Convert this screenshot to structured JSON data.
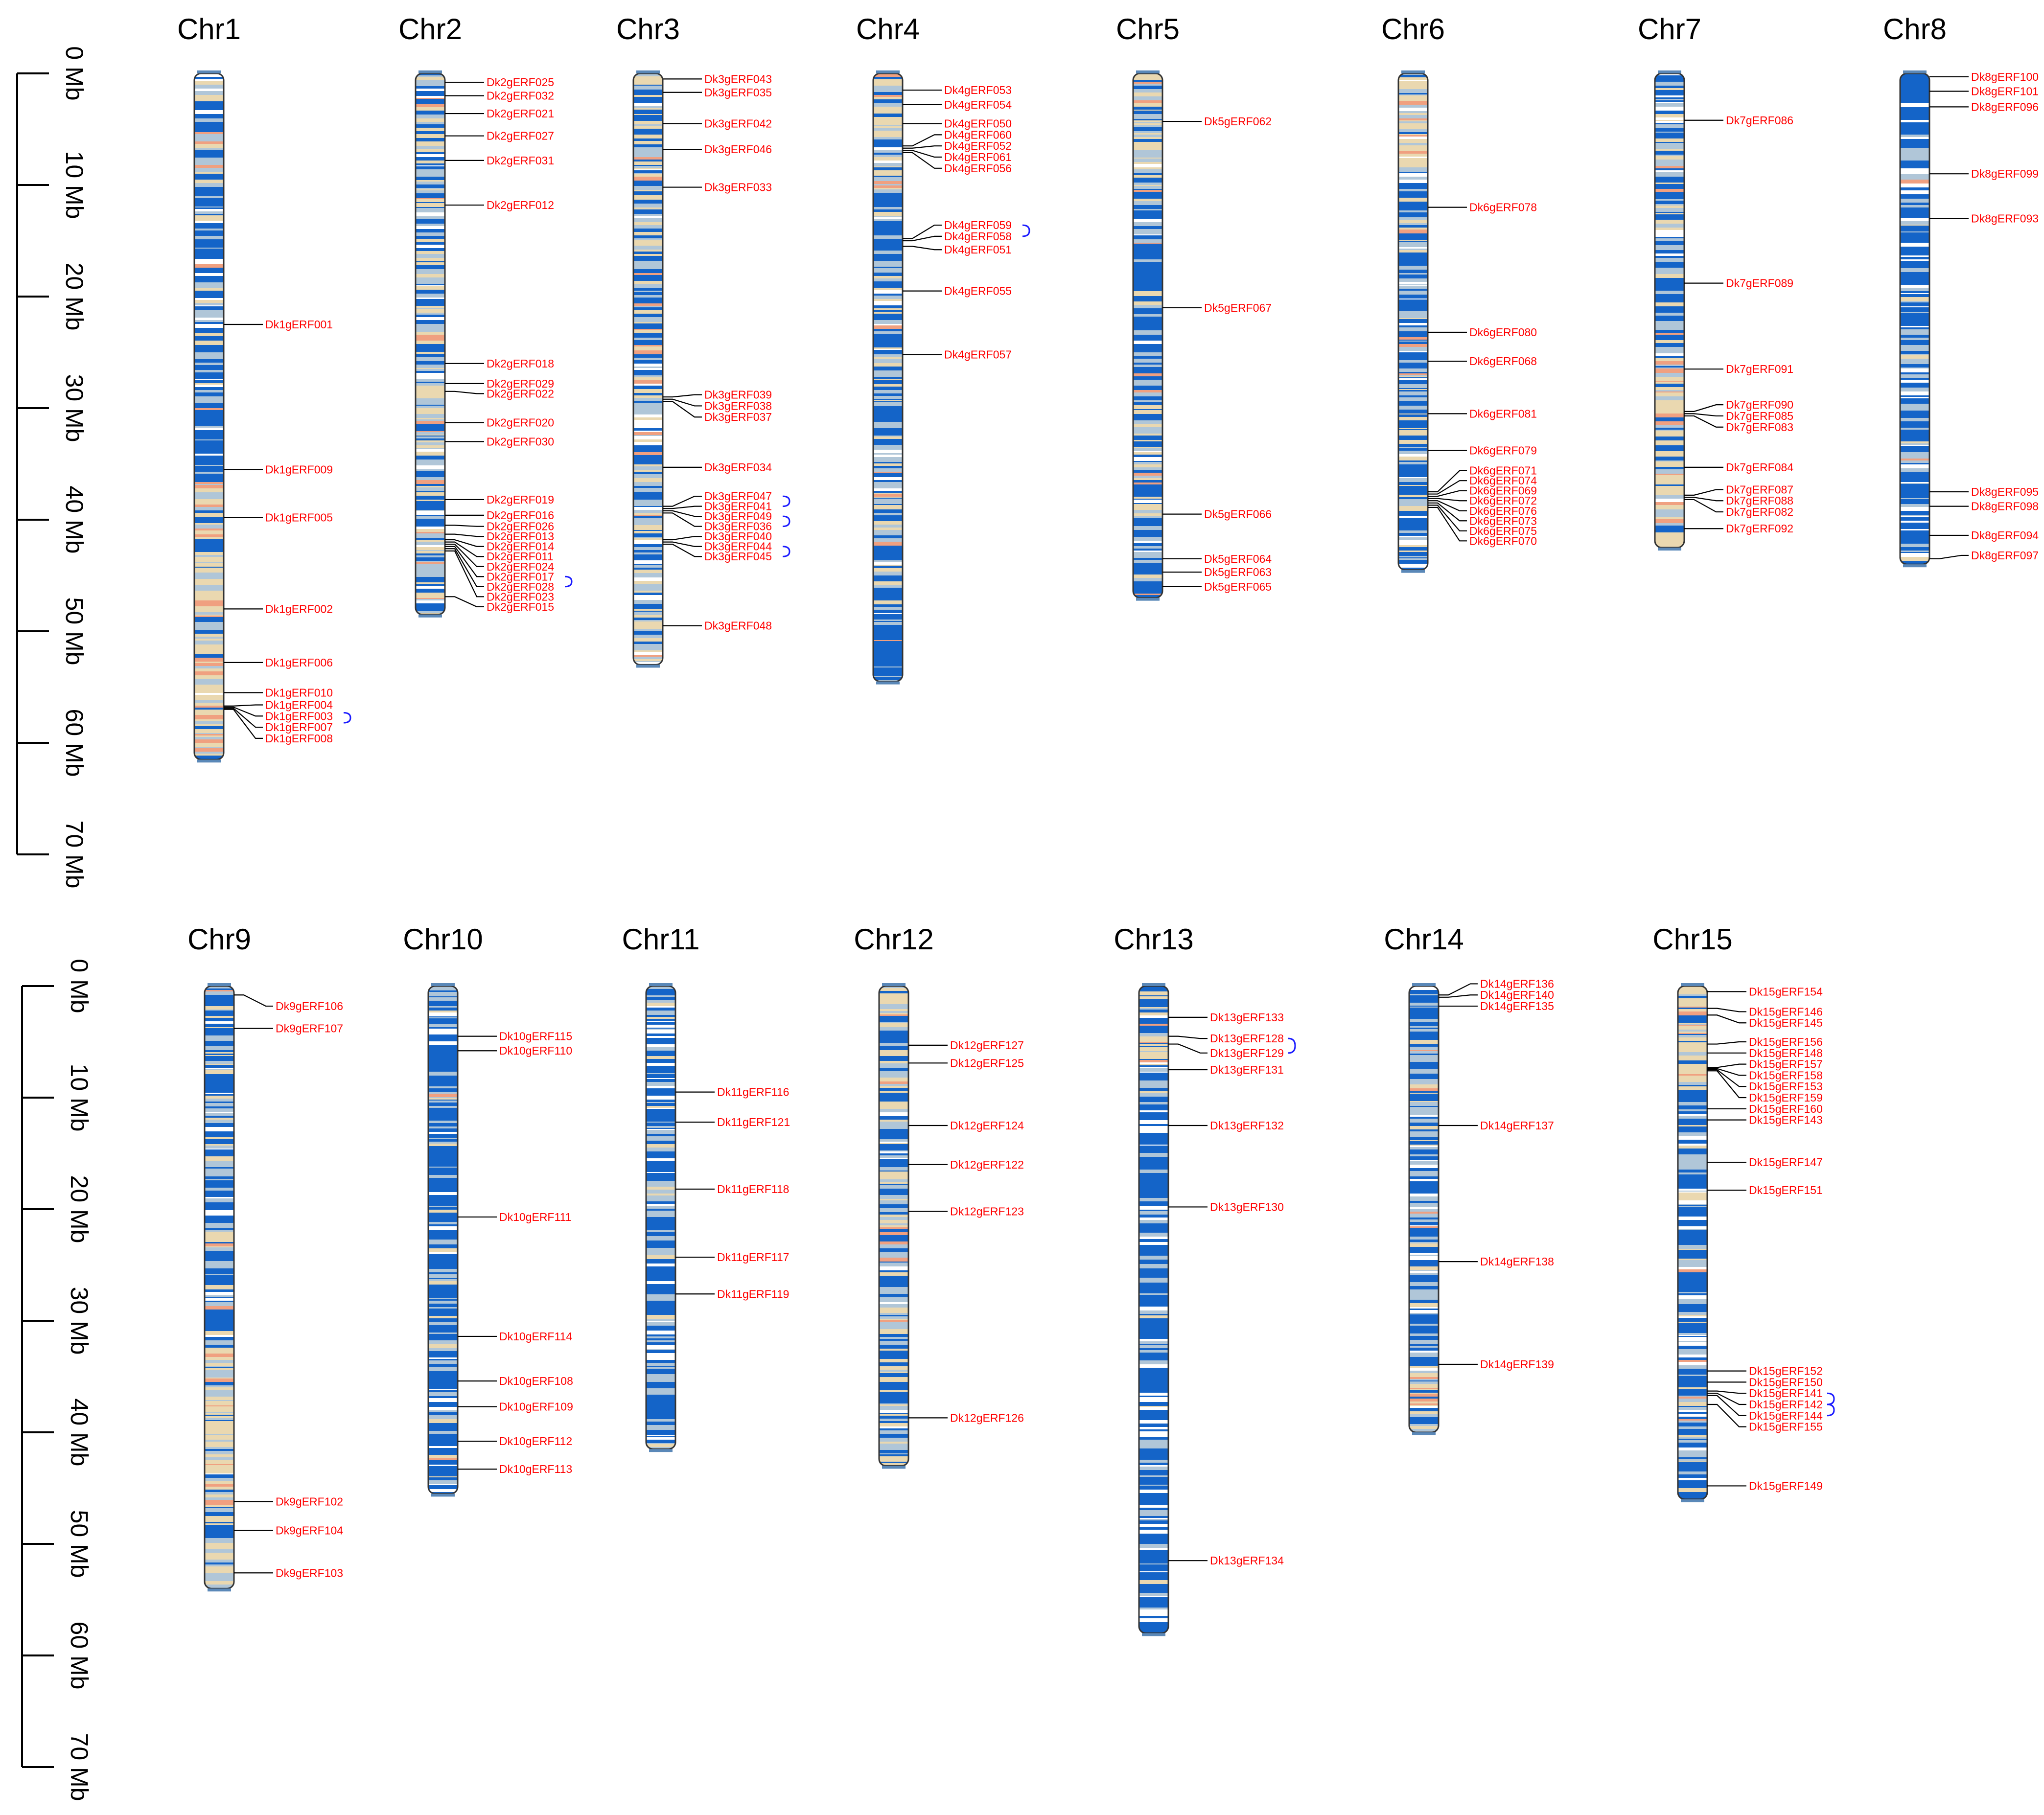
{
  "colors": {
    "gene_label": "#ff0000",
    "leader_line": "#000000",
    "tandem_bracket": "#1a1aff",
    "density_high": "#1464c8",
    "density_mid": "#b0c6d8",
    "density_low": "#ead8b0",
    "density_peak": "#f0a080",
    "chromosome_outline": "#333333"
  },
  "scale_unit": "Mb",
  "axes": [
    {
      "panel": "top",
      "ticks": [
        "0 Mb",
        "10 Mb",
        "20 Mb",
        "30 Mb",
        "40 Mb",
        "50 Mb",
        "60 Mb",
        "70 Mb"
      ]
    },
    {
      "panel": "bottom",
      "ticks": [
        "0 Mb",
        "10 Mb",
        "20 Mb",
        "30 Mb",
        "40 Mb",
        "50 Mb",
        "60 Mb",
        "70 Mb"
      ]
    }
  ],
  "chromosomes": [
    {
      "name": "Chr1",
      "panel": "top",
      "length_mb": 61.5,
      "density": "mixed_tail",
      "genes": [
        {
          "id": "Dk1gERF001",
          "pos": 22.5,
          "label_pos": 22.5
        },
        {
          "id": "Dk1gERF009",
          "pos": 35.5,
          "label_pos": 35.5
        },
        {
          "id": "Dk1gERF005",
          "pos": 39.8,
          "label_pos": 39.8
        },
        {
          "id": "Dk1gERF002",
          "pos": 48.0,
          "label_pos": 48.0
        },
        {
          "id": "Dk1gERF006",
          "pos": 52.8,
          "label_pos": 52.8
        },
        {
          "id": "Dk1gERF010",
          "pos": 55.5,
          "label_pos": 55.5
        },
        {
          "id": "Dk1gERF004",
          "pos": 56.7,
          "label_pos": 56.6
        },
        {
          "id": "Dk1gERF003",
          "pos": 56.8,
          "label_pos": 57.6
        },
        {
          "id": "Dk1gERF007",
          "pos": 56.9,
          "label_pos": 58.6
        },
        {
          "id": "Dk1gERF008",
          "pos": 57.0,
          "label_pos": 59.6
        }
      ],
      "tandem": [
        [
          57.3,
          58.2
        ]
      ]
    },
    {
      "name": "Chr2",
      "panel": "top",
      "length_mb": 48.5,
      "density": "mixed",
      "genes": [
        {
          "id": "Dk2gERF025",
          "pos": 0.8,
          "label_pos": 0.8
        },
        {
          "id": "Dk2gERF032",
          "pos": 2.0,
          "label_pos": 2.0
        },
        {
          "id": "Dk2gERF021",
          "pos": 3.6,
          "label_pos": 3.6
        },
        {
          "id": "Dk2gERF027",
          "pos": 5.6,
          "label_pos": 5.6
        },
        {
          "id": "Dk2gERF031",
          "pos": 7.8,
          "label_pos": 7.8
        },
        {
          "id": "Dk2gERF012",
          "pos": 11.8,
          "label_pos": 11.8
        },
        {
          "id": "Dk2gERF018",
          "pos": 26.0,
          "label_pos": 26.0
        },
        {
          "id": "Dk2gERF029",
          "pos": 27.8,
          "label_pos": 27.8
        },
        {
          "id": "Dk2gERF022",
          "pos": 28.5,
          "label_pos": 28.7
        },
        {
          "id": "Dk2gERF020",
          "pos": 31.3,
          "label_pos": 31.3
        },
        {
          "id": "Dk2gERF030",
          "pos": 33.0,
          "label_pos": 33.0
        },
        {
          "id": "Dk2gERF019",
          "pos": 38.2,
          "label_pos": 38.2
        },
        {
          "id": "Dk2gERF016",
          "pos": 39.6,
          "label_pos": 39.6
        },
        {
          "id": "Dk2gERF026",
          "pos": 40.5,
          "label_pos": 40.6
        },
        {
          "id": "Dk2gERF013",
          "pos": 41.3,
          "label_pos": 41.5
        },
        {
          "id": "Dk2gERF014",
          "pos": 41.8,
          "label_pos": 42.4
        },
        {
          "id": "Dk2gERF011",
          "pos": 42.0,
          "label_pos": 43.3
        },
        {
          "id": "Dk2gERF024",
          "pos": 42.2,
          "label_pos": 44.2
        },
        {
          "id": "Dk2gERF017",
          "pos": 42.4,
          "label_pos": 45.1
        },
        {
          "id": "Dk2gERF028",
          "pos": 42.6,
          "label_pos": 46.0
        },
        {
          "id": "Dk2gERF023",
          "pos": 42.8,
          "label_pos": 46.9
        },
        {
          "id": "Dk2gERF015",
          "pos": 46.9,
          "label_pos": 47.8
        }
      ],
      "tandem": [
        [
          45.1,
          46.0
        ]
      ]
    },
    {
      "name": "Chr3",
      "panel": "top",
      "length_mb": 53.0,
      "density": "mixed",
      "genes": [
        {
          "id": "Dk3gERF043",
          "pos": 0.5,
          "label_pos": 0.5
        },
        {
          "id": "Dk3gERF035",
          "pos": 1.7,
          "label_pos": 1.7
        },
        {
          "id": "Dk3gERF042",
          "pos": 4.5,
          "label_pos": 4.5
        },
        {
          "id": "Dk3gERF046",
          "pos": 6.8,
          "label_pos": 6.8
        },
        {
          "id": "Dk3gERF033",
          "pos": 10.2,
          "label_pos": 10.2
        },
        {
          "id": "Dk3gERF039",
          "pos": 29.0,
          "label_pos": 28.8
        },
        {
          "id": "Dk3gERF038",
          "pos": 29.2,
          "label_pos": 29.8
        },
        {
          "id": "Dk3gERF037",
          "pos": 29.4,
          "label_pos": 30.8
        },
        {
          "id": "Dk3gERF034",
          "pos": 35.3,
          "label_pos": 35.3
        },
        {
          "id": "Dk3gERF047",
          "pos": 38.8,
          "label_pos": 37.9
        },
        {
          "id": "Dk3gERF041",
          "pos": 39.0,
          "label_pos": 38.8
        },
        {
          "id": "Dk3gERF049",
          "pos": 39.2,
          "label_pos": 39.7
        },
        {
          "id": "Dk3gERF036",
          "pos": 39.4,
          "label_pos": 40.6
        },
        {
          "id": "Dk3gERF040",
          "pos": 41.8,
          "label_pos": 41.5
        },
        {
          "id": "Dk3gERF044",
          "pos": 42.0,
          "label_pos": 42.4
        },
        {
          "id": "Dk3gERF045",
          "pos": 42.2,
          "label_pos": 43.3
        },
        {
          "id": "Dk3gERF048",
          "pos": 49.5,
          "label_pos": 49.5
        }
      ],
      "tandem": [
        [
          37.9,
          38.8
        ],
        [
          39.7,
          40.6
        ],
        [
          42.4,
          43.3
        ]
      ]
    },
    {
      "name": "Chr4",
      "panel": "top",
      "length_mb": 54.5,
      "density": "mixed_head",
      "genes": [
        {
          "id": "Dk4gERF053",
          "pos": 1.5,
          "label_pos": 1.5
        },
        {
          "id": "Dk4gERF054",
          "pos": 2.8,
          "label_pos": 2.8
        },
        {
          "id": "Dk4gERF050",
          "pos": 4.5,
          "label_pos": 4.5
        },
        {
          "id": "Dk4gERF060",
          "pos": 6.5,
          "label_pos": 5.5
        },
        {
          "id": "Dk4gERF052",
          "pos": 6.7,
          "label_pos": 6.5
        },
        {
          "id": "Dk4gERF061",
          "pos": 6.9,
          "label_pos": 7.5
        },
        {
          "id": "Dk4gERF056",
          "pos": 7.1,
          "label_pos": 8.5
        },
        {
          "id": "Dk4gERF059",
          "pos": 14.8,
          "label_pos": 13.6
        },
        {
          "id": "Dk4gERF058",
          "pos": 15.0,
          "label_pos": 14.6
        },
        {
          "id": "Dk4gERF051",
          "pos": 15.5,
          "label_pos": 15.8
        },
        {
          "id": "Dk4gERF055",
          "pos": 19.5,
          "label_pos": 19.5
        },
        {
          "id": "Dk4gERF057",
          "pos": 25.2,
          "label_pos": 25.2
        }
      ],
      "tandem": [
        [
          13.6,
          14.6
        ]
      ]
    },
    {
      "name": "Chr5",
      "panel": "top",
      "length_mb": 47.0,
      "density": "mixed_head",
      "genes": [
        {
          "id": "Dk5gERF062",
          "pos": 4.3,
          "label_pos": 4.3
        },
        {
          "id": "Dk5gERF067",
          "pos": 21.0,
          "label_pos": 21.0
        },
        {
          "id": "Dk5gERF066",
          "pos": 39.5,
          "label_pos": 39.5
        },
        {
          "id": "Dk5gERF064",
          "pos": 43.5,
          "label_pos": 43.5
        },
        {
          "id": "Dk5gERF063",
          "pos": 44.7,
          "label_pos": 44.7
        },
        {
          "id": "Dk5gERF065",
          "pos": 46.0,
          "label_pos": 46.0
        }
      ],
      "tandem": []
    },
    {
      "name": "Chr6",
      "panel": "top",
      "length_mb": 44.5,
      "density": "mixed_head",
      "genes": [
        {
          "id": "Dk6gERF078",
          "pos": 12.0,
          "label_pos": 12.0
        },
        {
          "id": "Dk6gERF080",
          "pos": 23.2,
          "label_pos": 23.2
        },
        {
          "id": "Dk6gERF068",
          "pos": 25.8,
          "label_pos": 25.8
        },
        {
          "id": "Dk6gERF081",
          "pos": 30.5,
          "label_pos": 30.5
        },
        {
          "id": "Dk6gERF079",
          "pos": 33.8,
          "label_pos": 33.8
        },
        {
          "id": "Dk6gERF071",
          "pos": 37.5,
          "label_pos": 35.6
        },
        {
          "id": "Dk6gERF074",
          "pos": 37.7,
          "label_pos": 36.5
        },
        {
          "id": "Dk6gERF069",
          "pos": 37.9,
          "label_pos": 37.4
        },
        {
          "id": "Dk6gERF072",
          "pos": 38.1,
          "label_pos": 38.3
        },
        {
          "id": "Dk6gERF076",
          "pos": 38.3,
          "label_pos": 39.2
        },
        {
          "id": "Dk6gERF073",
          "pos": 38.5,
          "label_pos": 40.1
        },
        {
          "id": "Dk6gERF075",
          "pos": 38.7,
          "label_pos": 41.0
        },
        {
          "id": "Dk6gERF070",
          "pos": 38.9,
          "label_pos": 41.9
        }
      ],
      "tandem": []
    },
    {
      "name": "Chr7",
      "panel": "top",
      "length_mb": 42.5,
      "density": "mixed_tail",
      "genes": [
        {
          "id": "Dk7gERF086",
          "pos": 4.2,
          "label_pos": 4.2
        },
        {
          "id": "Dk7gERF089",
          "pos": 18.8,
          "label_pos": 18.8
        },
        {
          "id": "Dk7gERF091",
          "pos": 26.5,
          "label_pos": 26.5
        },
        {
          "id": "Dk7gERF090",
          "pos": 30.3,
          "label_pos": 29.7
        },
        {
          "id": "Dk7gERF085",
          "pos": 30.5,
          "label_pos": 30.7
        },
        {
          "id": "Dk7gERF083",
          "pos": 30.7,
          "label_pos": 31.7
        },
        {
          "id": "Dk7gERF084",
          "pos": 35.3,
          "label_pos": 35.3
        },
        {
          "id": "Dk7gERF087",
          "pos": 37.8,
          "label_pos": 37.3
        },
        {
          "id": "Dk7gERF088",
          "pos": 38.0,
          "label_pos": 38.3
        },
        {
          "id": "Dk7gERF082",
          "pos": 38.2,
          "label_pos": 39.3
        },
        {
          "id": "Dk7gERF092",
          "pos": 40.8,
          "label_pos": 40.8
        }
      ],
      "tandem": []
    },
    {
      "name": "Chr8",
      "panel": "top",
      "length_mb": 44.0,
      "density": "blue",
      "genes": [
        {
          "id": "Dk8gERF100",
          "pos": 0.3,
          "label_pos": 0.3
        },
        {
          "id": "Dk8gERF101",
          "pos": 1.6,
          "label_pos": 1.6
        },
        {
          "id": "Dk8gERF096",
          "pos": 3.0,
          "label_pos": 3.0
        },
        {
          "id": "Dk8gERF099",
          "pos": 9.0,
          "label_pos": 9.0
        },
        {
          "id": "Dk8gERF093",
          "pos": 13.0,
          "label_pos": 13.0
        },
        {
          "id": "Dk8gERF095",
          "pos": 37.5,
          "label_pos": 37.5
        },
        {
          "id": "Dk8gERF098",
          "pos": 38.8,
          "label_pos": 38.8
        },
        {
          "id": "Dk8gERF094",
          "pos": 41.4,
          "label_pos": 41.4
        },
        {
          "id": "Dk8gERF097",
          "pos": 43.5,
          "label_pos": 43.2
        }
      ],
      "tandem": []
    },
    {
      "name": "Chr9",
      "panel": "bottom",
      "length_mb": 54.0,
      "density": "mixed_tail",
      "genes": [
        {
          "id": "Dk9gERF106",
          "pos": 0.8,
          "label_pos": 1.8
        },
        {
          "id": "Dk9gERF107",
          "pos": 3.8,
          "label_pos": 3.8
        },
        {
          "id": "Dk9gERF102",
          "pos": 46.2,
          "label_pos": 46.2
        },
        {
          "id": "Dk9gERF104",
          "pos": 48.8,
          "label_pos": 48.8
        },
        {
          "id": "Dk9gERF103",
          "pos": 52.6,
          "label_pos": 52.6
        }
      ],
      "tandem": []
    },
    {
      "name": "Chr10",
      "panel": "bottom",
      "length_mb": 45.5,
      "density": "blue",
      "genes": [
        {
          "id": "Dk10gERF115",
          "pos": 4.5,
          "label_pos": 4.5
        },
        {
          "id": "Dk10gERF110",
          "pos": 5.8,
          "label_pos": 5.8
        },
        {
          "id": "Dk10gERF111",
          "pos": 20.7,
          "label_pos": 20.7
        },
        {
          "id": "Dk10gERF114",
          "pos": 31.4,
          "label_pos": 31.4
        },
        {
          "id": "Dk10gERF108",
          "pos": 35.4,
          "label_pos": 35.4
        },
        {
          "id": "Dk10gERF109",
          "pos": 37.7,
          "label_pos": 37.7
        },
        {
          "id": "Dk10gERF112",
          "pos": 40.8,
          "label_pos": 40.8
        },
        {
          "id": "Dk10gERF113",
          "pos": 43.3,
          "label_pos": 43.3
        }
      ],
      "tandem": []
    },
    {
      "name": "Chr11",
      "panel": "bottom",
      "length_mb": 41.5,
      "density": "blue",
      "genes": [
        {
          "id": "Dk11gERF116",
          "pos": 9.5,
          "label_pos": 9.5
        },
        {
          "id": "Dk11gERF121",
          "pos": 12.2,
          "label_pos": 12.2
        },
        {
          "id": "Dk11gERF118",
          "pos": 18.2,
          "label_pos": 18.2
        },
        {
          "id": "Dk11gERF117",
          "pos": 24.3,
          "label_pos": 24.3
        },
        {
          "id": "Dk11gERF119",
          "pos": 27.6,
          "label_pos": 27.6
        }
      ],
      "tandem": []
    },
    {
      "name": "Chr12",
      "panel": "bottom",
      "length_mb": 43.0,
      "density": "mixed",
      "genes": [
        {
          "id": "Dk12gERF127",
          "pos": 5.3,
          "label_pos": 5.3
        },
        {
          "id": "Dk12gERF125",
          "pos": 6.9,
          "label_pos": 6.9
        },
        {
          "id": "Dk12gERF124",
          "pos": 12.5,
          "label_pos": 12.5
        },
        {
          "id": "Dk12gERF122",
          "pos": 16.0,
          "label_pos": 16.0
        },
        {
          "id": "Dk12gERF123",
          "pos": 20.2,
          "label_pos": 20.2
        },
        {
          "id": "Dk12gERF126",
          "pos": 38.7,
          "label_pos": 38.7
        }
      ],
      "tandem": []
    },
    {
      "name": "Chr13",
      "panel": "bottom",
      "length_mb": 58.0,
      "density": "blue_head",
      "genes": [
        {
          "id": "Dk13gERF133",
          "pos": 2.8,
          "label_pos": 2.8
        },
        {
          "id": "Dk13gERF128",
          "pos": 4.5,
          "label_pos": 4.7
        },
        {
          "id": "Dk13gERF129",
          "pos": 5.2,
          "label_pos": 6.0
        },
        {
          "id": "Dk13gERF131",
          "pos": 7.5,
          "label_pos": 7.5
        },
        {
          "id": "Dk13gERF132",
          "pos": 12.5,
          "label_pos": 12.5
        },
        {
          "id": "Dk13gERF130",
          "pos": 19.8,
          "label_pos": 19.8
        },
        {
          "id": "Dk13gERF134",
          "pos": 51.5,
          "label_pos": 51.5
        }
      ],
      "tandem": [
        [
          4.7,
          6.0
        ]
      ]
    },
    {
      "name": "Chr14",
      "panel": "bottom",
      "length_mb": 40.0,
      "density": "blue_tail",
      "genes": [
        {
          "id": "Dk14gERF136",
          "pos": 0.8,
          "label_pos": -0.2
        },
        {
          "id": "Dk14gERF140",
          "pos": 1.0,
          "label_pos": 0.8
        },
        {
          "id": "Dk14gERF135",
          "pos": 1.8,
          "label_pos": 1.8
        },
        {
          "id": "Dk14gERF137",
          "pos": 12.5,
          "label_pos": 12.5
        },
        {
          "id": "Dk14gERF138",
          "pos": 24.7,
          "label_pos": 24.7
        },
        {
          "id": "Dk14gERF139",
          "pos": 33.9,
          "label_pos": 33.9
        }
      ],
      "tandem": []
    },
    {
      "name": "Chr15",
      "panel": "bottom",
      "length_mb": 46.0,
      "density": "mixed_head",
      "genes": [
        {
          "id": "Dk15gERF154",
          "pos": 0.5,
          "label_pos": 0.5
        },
        {
          "id": "Dk15gERF146",
          "pos": 2.0,
          "label_pos": 2.3
        },
        {
          "id": "Dk15gERF145",
          "pos": 2.6,
          "label_pos": 3.3
        },
        {
          "id": "Dk15gERF156",
          "pos": 5.2,
          "label_pos": 5.0
        },
        {
          "id": "Dk15gERF148",
          "pos": 6.0,
          "label_pos": 6.0
        },
        {
          "id": "Dk15gERF157",
          "pos": 7.3,
          "label_pos": 7.0
        },
        {
          "id": "Dk15gERF158",
          "pos": 7.4,
          "label_pos": 8.0
        },
        {
          "id": "Dk15gERF153",
          "pos": 7.5,
          "label_pos": 9.0
        },
        {
          "id": "Dk15gERF159",
          "pos": 7.6,
          "label_pos": 10.0
        },
        {
          "id": "Dk15gERF160",
          "pos": 11.0,
          "label_pos": 11.0
        },
        {
          "id": "Dk15gERF143",
          "pos": 12.0,
          "label_pos": 12.0
        },
        {
          "id": "Dk15gERF147",
          "pos": 15.8,
          "label_pos": 15.8
        },
        {
          "id": "Dk15gERF151",
          "pos": 18.3,
          "label_pos": 18.3
        },
        {
          "id": "Dk15gERF152",
          "pos": 34.5,
          "label_pos": 34.5
        },
        {
          "id": "Dk15gERF150",
          "pos": 35.5,
          "label_pos": 35.5
        },
        {
          "id": "Dk15gERF141",
          "pos": 36.3,
          "label_pos": 36.5
        },
        {
          "id": "Dk15gERF142",
          "pos": 36.5,
          "label_pos": 37.5
        },
        {
          "id": "Dk15gERF144",
          "pos": 36.7,
          "label_pos": 38.5
        },
        {
          "id": "Dk15gERF155",
          "pos": 37.5,
          "label_pos": 39.5
        },
        {
          "id": "Dk15gERF149",
          "pos": 44.8,
          "label_pos": 44.8
        }
      ],
      "tandem": [
        [
          36.5,
          37.5
        ],
        [
          37.5,
          38.5
        ]
      ]
    }
  ]
}
